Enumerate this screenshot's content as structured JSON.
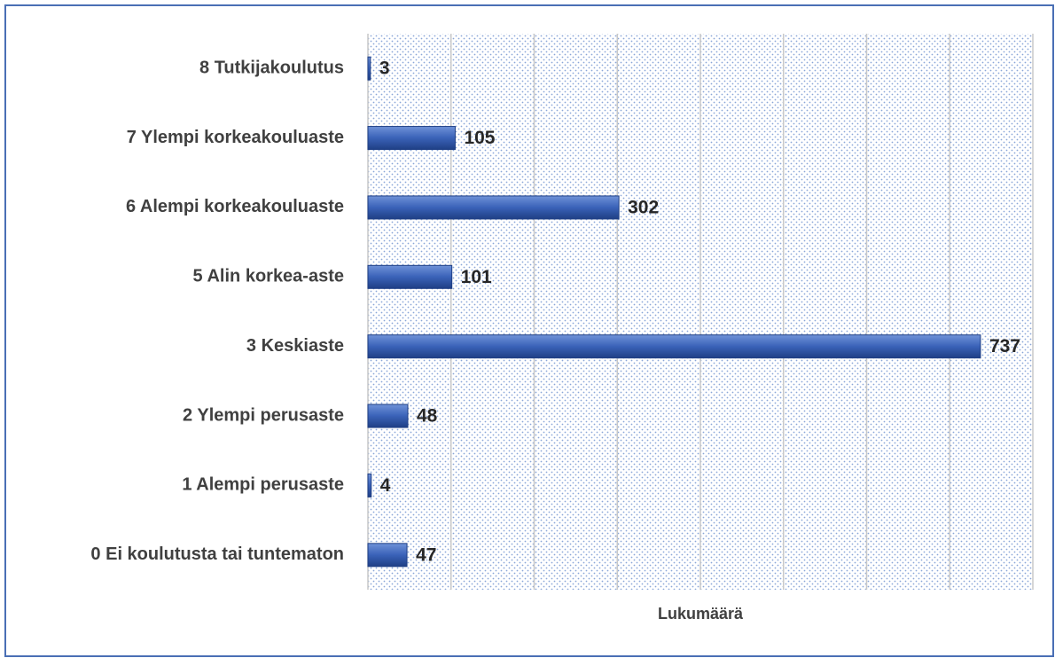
{
  "chart_data": {
    "type": "bar",
    "orientation": "horizontal",
    "x_label": "Lukumäärä",
    "categories": [
      "8 Tutkijakoulutus",
      "7 Ylempi korkeakouluaste",
      "6 Alempi korkeakouluaste",
      "5 Alin korkea-aste",
      "3 Keskiaste",
      "2 Ylempi perusaste",
      "1 Alempi perusaste",
      "0 Ei koulutusta tai tuntematon"
    ],
    "values": [
      3,
      105,
      302,
      101,
      737,
      48,
      4,
      47
    ],
    "color": "#3a62b8",
    "xlim": [
      0,
      800
    ],
    "xticks": [
      0,
      100,
      200,
      300,
      400,
      500,
      600,
      700,
      800
    ],
    "grid": true
  }
}
